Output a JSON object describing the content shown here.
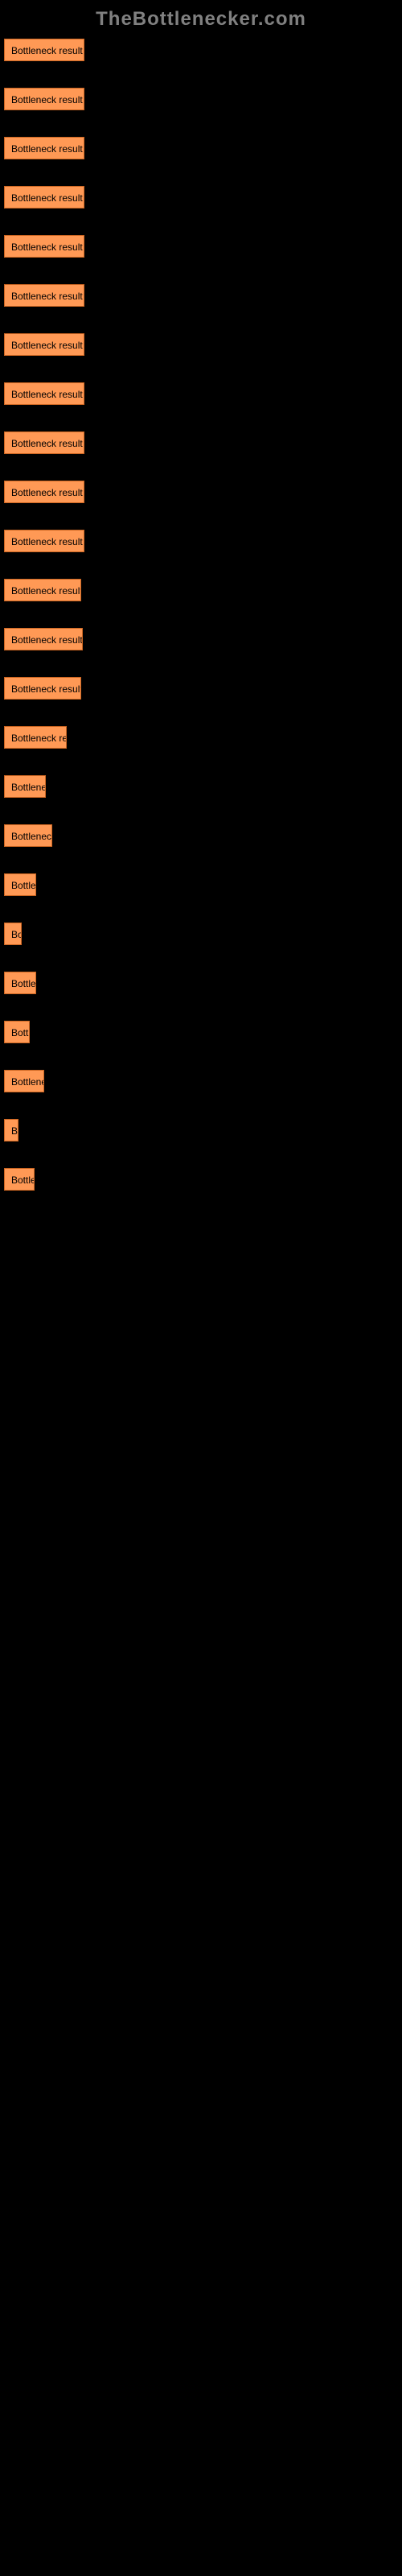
{
  "header": {
    "site_name": "TheBottlenecker.com"
  },
  "results": {
    "label": "Bottleneck result",
    "items": [
      {
        "width": 100
      },
      {
        "width": 100
      },
      {
        "width": 100
      },
      {
        "width": 100
      },
      {
        "width": 100
      },
      {
        "width": 100
      },
      {
        "width": 100
      },
      {
        "width": 100
      },
      {
        "width": 100
      },
      {
        "width": 100
      },
      {
        "width": 100
      },
      {
        "width": 96
      },
      {
        "width": 98
      },
      {
        "width": 96
      },
      {
        "width": 78
      },
      {
        "width": 52
      },
      {
        "width": 60
      },
      {
        "width": 40
      },
      {
        "width": 22
      },
      {
        "width": 40
      },
      {
        "width": 32
      },
      {
        "width": 50
      },
      {
        "width": 14
      },
      {
        "width": 38
      }
    ]
  }
}
